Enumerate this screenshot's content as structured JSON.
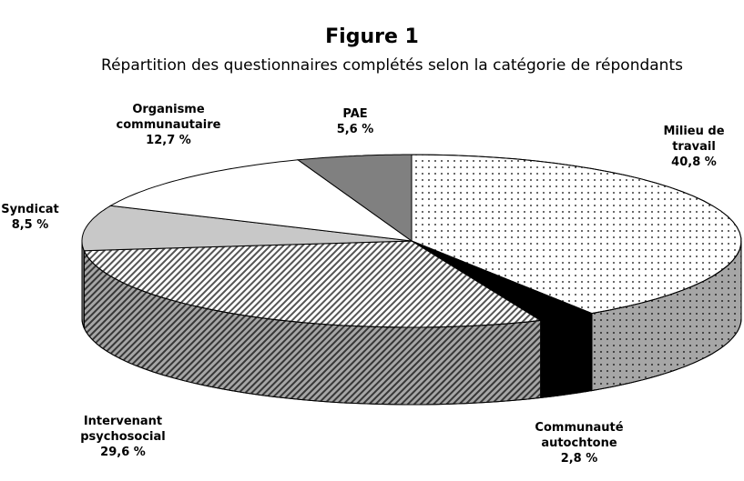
{
  "chart_data": {
    "type": "pie3d",
    "title": "Figure 1",
    "subtitle": "Répartition des questionnaires complétés selon la catégorie de répondants",
    "categories": [
      "Milieu de travail",
      "Communauté autochtone",
      "Intervenant psychosocial",
      "Syndicat",
      "Organisme communautaire",
      "PAE"
    ],
    "values": [
      40.8,
      2.8,
      29.6,
      8.5,
      12.7,
      5.6
    ],
    "value_labels": [
      "40,8 %",
      "2,8 %",
      "29,6 %",
      "8,5 %",
      "12,7 %",
      "5,6 %"
    ],
    "colors": [
      "#ffffff",
      "#000000",
      "#ffffff",
      "#c8c8c8",
      "#ffffff",
      "#808080"
    ]
  }
}
